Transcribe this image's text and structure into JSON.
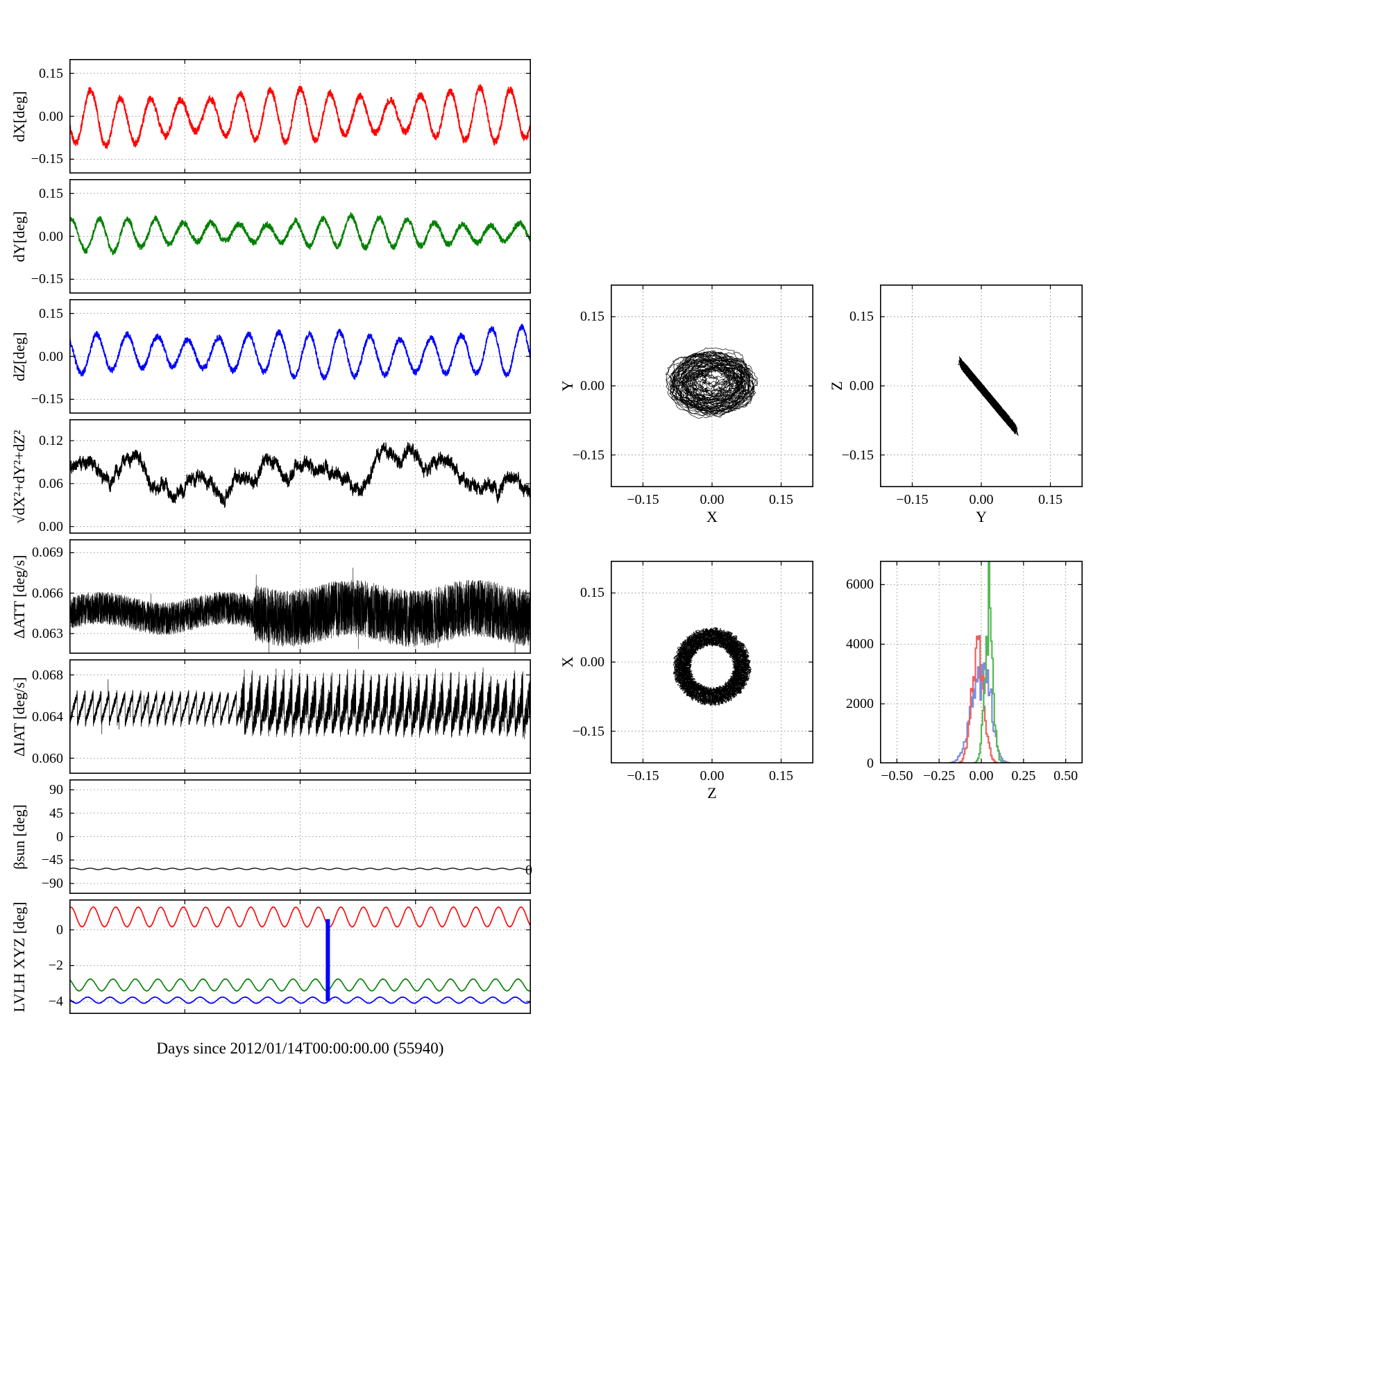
{
  "figure": {
    "xlabel": "Days since 2012/01/14T00:00:00.00 (55940)",
    "stray_tick": "0",
    "background": "#ffffff"
  },
  "chart_data": [
    {
      "id": "dX",
      "type": "line",
      "ylabel": "dX[deg]",
      "color": "#ff0000",
      "xlim": [
        0,
        1
      ],
      "ylim": [
        -0.2,
        0.2
      ],
      "xticks": [
        0,
        0.25,
        0.5,
        0.75,
        1
      ],
      "xtick_labels": [],
      "yticks": [
        -0.15,
        0,
        0.15
      ],
      "ytick_labels": [
        "−0.15",
        "0.00",
        "0.15"
      ],
      "grid": true,
      "series": {
        "kind": "sine_noise",
        "mean": 0.0,
        "amplitude": 0.075,
        "cycles": 15.4,
        "phase": 3.4,
        "mod": 0.25,
        "mod_cycles": 2.3,
        "noise": 0.012,
        "walk": 0.002,
        "points": 2600,
        "seed": 11,
        "lw": 1.5
      }
    },
    {
      "id": "dY",
      "type": "line",
      "ylabel": "dY[deg]",
      "color": "#008000",
      "xlim": [
        0,
        1
      ],
      "ylim": [
        -0.2,
        0.2
      ],
      "xticks": [
        0,
        0.25,
        0.5,
        0.75,
        1
      ],
      "xtick_labels": [],
      "yticks": [
        -0.15,
        0,
        0.15
      ],
      "ytick_labels": [
        "−0.15",
        "0.00",
        "0.15"
      ],
      "grid": true,
      "series": {
        "kind": "sine_noise",
        "mean": 0.012,
        "amplitude": 0.042,
        "cycles": 16.5,
        "phase": 1.1,
        "mod": 0.3,
        "mod_cycles": 1.7,
        "noise": 0.01,
        "walk": 0.002,
        "points": 2600,
        "seed": 22,
        "lw": 1.5
      }
    },
    {
      "id": "dZ",
      "type": "line",
      "ylabel": "dZ[deg]",
      "color": "#0000ff",
      "xlim": [
        0,
        1
      ],
      "ylim": [
        -0.2,
        0.2
      ],
      "xticks": [
        0,
        0.25,
        0.5,
        0.75,
        1
      ],
      "xtick_labels": [],
      "yticks": [
        -0.15,
        0,
        0.15
      ],
      "ytick_labels": [
        "−0.15",
        "0.00",
        "0.15"
      ],
      "grid": true,
      "series": {
        "kind": "sine_noise",
        "mean": 0.004,
        "amplitude": 0.055,
        "cycles": 15.2,
        "phase": 2.2,
        "mod": 0.2,
        "mod_cycles": 2.1,
        "grow": 0.4,
        "noise": 0.01,
        "walk": 0.002,
        "points": 2600,
        "seed": 33,
        "lw": 1.5
      }
    },
    {
      "id": "rss",
      "type": "line",
      "ylabel": "√dX²+dY²+dZ²",
      "color": "#000000",
      "xlim": [
        0,
        1
      ],
      "ylim": [
        -0.01,
        0.15
      ],
      "xticks": [
        0,
        0.25,
        0.5,
        0.75,
        1
      ],
      "xtick_labels": [],
      "yticks": [
        0,
        0.06,
        0.12
      ],
      "ytick_labels": [
        "0.00",
        "0.06",
        "0.12"
      ],
      "grid": true,
      "series": {
        "kind": "walk_noise",
        "base": 0.072,
        "sines": [
          [
            3,
            0.016
          ],
          [
            7.3,
            0.011
          ],
          [
            13.1,
            0.007
          ]
        ],
        "walk": 0.005,
        "damp": 0.995,
        "noise": 0.007,
        "clip": [
          0.008,
          0.138
        ],
        "points": 3500,
        "seed": 44,
        "lw": 1.2
      }
    },
    {
      "id": "delta_att",
      "type": "line",
      "ylabel": "ΔATT [deg/s]",
      "color": "#000000",
      "xlim": [
        0,
        1
      ],
      "ylim": [
        0.0615,
        0.07
      ],
      "xticks": [
        0,
        0.25,
        0.5,
        0.75,
        1
      ],
      "xtick_labels": [],
      "yticks": [
        0.063,
        0.066,
        0.069
      ],
      "ytick_labels": [
        "0.063",
        "0.066",
        "0.069"
      ],
      "grid": true,
      "series": {
        "kind": "noise_band",
        "base": 0.0645,
        "split": 0.4,
        "amp1": 0.0012,
        "amp2": 0.0021,
        "spike": 0.0022,
        "points": 7000,
        "seed": 55,
        "lw": 0.6
      }
    },
    {
      "id": "delta_iat",
      "type": "line",
      "ylabel": "ΔIAT [deg/s]",
      "color": "#000000",
      "xlim": [
        0,
        1
      ],
      "ylim": [
        0.0585,
        0.0695
      ],
      "xticks": [
        0,
        0.25,
        0.5,
        0.75,
        1
      ],
      "xtick_labels": [],
      "yticks": [
        0.06,
        0.064,
        0.068
      ],
      "ytick_labels": [
        "0.060",
        "0.064",
        "0.068"
      ],
      "grid": true,
      "series": {
        "kind": "sawtooth_noise",
        "split": 0.37,
        "teeth": 58,
        "base1": 0.0634,
        "ramp1": 0.0028,
        "noise1": 0.00045,
        "base2": 0.0627,
        "ramp2": 0.0038,
        "noise2": 0.0015,
        "spike": 0.002,
        "points": 7000,
        "seed": 66,
        "lw": 0.7
      }
    },
    {
      "id": "beta_sun",
      "type": "line",
      "ylabel": "βsun [deg]",
      "color": "#000000",
      "xlim": [
        0,
        1
      ],
      "ylim": [
        -110,
        110
      ],
      "xticks": [
        0,
        0.25,
        0.5,
        0.75,
        1
      ],
      "xtick_labels": [],
      "yticks": [
        -90,
        -45,
        0,
        45,
        90
      ],
      "ytick_labels": [
        "−90",
        "−45",
        "0",
        "45",
        "90"
      ],
      "grid": true,
      "series": {
        "kind": "flat_wiggle",
        "mean": -62,
        "amp": 1.4,
        "cycles": 28,
        "points": 1200,
        "seed": 77,
        "lw": 1.3
      }
    },
    {
      "id": "lvlh_xyz",
      "type": "line",
      "ylabel": "LVLH XYZ [deg]",
      "color": "#000000",
      "xlim": [
        0,
        1
      ],
      "ylim": [
        -4.7,
        1.7
      ],
      "xticks": [
        0,
        0.25,
        0.5,
        0.75,
        1
      ],
      "xtick_labels": [],
      "yticks": [
        -4,
        -2,
        0
      ],
      "ytick_labels": [
        "−4",
        "−2",
        "0"
      ],
      "grid": true,
      "series": {
        "kind": "multi_sine",
        "points": 2400,
        "series": [
          {
            "name": "X",
            "mean": 0.72,
            "amp": 0.55,
            "cycles": 20.5,
            "phase": 1.2,
            "color": "#ff0000"
          },
          {
            "name": "Y",
            "mean": -3.08,
            "amp": 0.33,
            "cycles": 20.5,
            "phase": 2.0,
            "color": "#008000"
          },
          {
            "name": "Z",
            "mean": -3.93,
            "amp": 0.17,
            "cycles": 20.5,
            "phase": 2.8,
            "color": "#0000ff"
          }
        ],
        "event": {
          "x": 0.56,
          "y0": 0.6,
          "y1": -3.97,
          "color": "#0000ff",
          "width": 6
        },
        "lw": 1.6
      }
    },
    {
      "id": "scatter_xy",
      "type": "scatter",
      "xlabel": "X",
      "ylabel": "Y",
      "color": "#000000",
      "xlim": [
        -0.22,
        0.22
      ],
      "ylim": [
        -0.22,
        0.22
      ],
      "xticks": [
        -0.15,
        0,
        0.15
      ],
      "xtick_labels": [
        "−0.15",
        "0.00",
        "0.15"
      ],
      "yticks": [
        -0.15,
        0,
        0.15
      ],
      "ytick_labels": [
        "−0.15",
        "0.00",
        "0.15"
      ],
      "grid": true,
      "series": {
        "kind": "orbit_cloud",
        "cx": 0.0,
        "cy": 0.005,
        "ax": 0.08,
        "ay": 0.055,
        "loops": 60,
        "points": 6000,
        "seed": 99,
        "lw": 0.7
      }
    },
    {
      "id": "scatter_yz",
      "type": "scatter",
      "xlabel": "Y",
      "ylabel": "Z",
      "color": "#000000",
      "xlim": [
        -0.22,
        0.22
      ],
      "ylim": [
        -0.22,
        0.22
      ],
      "xticks": [
        -0.15,
        0,
        0.15
      ],
      "xtick_labels": [
        "−0.15",
        "0.00",
        "0.15"
      ],
      "yticks": [
        -0.15,
        0,
        0.15
      ],
      "ytick_labels": [
        "−0.15",
        "0.00",
        "0.15"
      ],
      "grid": true,
      "series": {
        "kind": "diag_cloud",
        "cy": 0.015,
        "ay": 0.055,
        "slope": -1.2,
        "cz": -0.005,
        "noise": 0.012,
        "loops": 55,
        "points": 6000,
        "seed": 111,
        "lw": 0.7
      }
    },
    {
      "id": "scatter_zx",
      "type": "scatter",
      "xlabel": "Z",
      "ylabel": "X",
      "color": "#000000",
      "xlim": [
        -0.22,
        0.22
      ],
      "ylim": [
        -0.22,
        0.22
      ],
      "xticks": [
        -0.15,
        0,
        0.15
      ],
      "xtick_labels": [
        "−0.15",
        "0.00",
        "0.15"
      ],
      "yticks": [
        -0.15,
        0,
        0.15
      ],
      "ytick_labels": [
        "−0.15",
        "0.00",
        "0.15"
      ],
      "grid": true,
      "series": {
        "kind": "ring_cloud",
        "cx": 0.0,
        "cy": -0.01,
        "r0": 0.065,
        "loops": 40,
        "points": 6000,
        "seed": 122,
        "lw": 0.7
      }
    },
    {
      "id": "histogram",
      "type": "histogram",
      "xlabel": "",
      "ylabel": "",
      "xlim": [
        -0.6,
        0.6
      ],
      "ylim": [
        0,
        6800
      ],
      "xticks": [
        -0.5,
        -0.25,
        0,
        0.25,
        0.5
      ],
      "xtick_labels": [
        "−0.50",
        "−0.25",
        "0.00",
        "0.25",
        "0.50"
      ],
      "yticks": [
        0,
        2000,
        4000,
        6000
      ],
      "ytick_labels": [
        "0",
        "2000",
        "4000",
        "6000"
      ],
      "grid": true,
      "series": {
        "kind": "hist_lines",
        "bins": 80,
        "range": [
          -0.28,
          0.28
        ],
        "lw": 2.2,
        "series": [
          {
            "name": "dZ",
            "color": "#7f8fd8",
            "seed": 3,
            "components": [
              [
                -0.01,
                0.055,
                2800
              ],
              [
                0.05,
                0.02,
                1100
              ]
            ]
          },
          {
            "name": "dX",
            "color": "#ee6060",
            "seed": 1,
            "components": [
              [
                -0.02,
                0.035,
                3800
              ],
              [
                -0.02,
                0.008,
                1300
              ]
            ]
          },
          {
            "name": "dY",
            "color": "#55b855",
            "seed": 2,
            "components": [
              [
                0.045,
                0.025,
                4300
              ],
              [
                0.05,
                0.006,
                2200
              ]
            ]
          }
        ]
      }
    }
  ]
}
